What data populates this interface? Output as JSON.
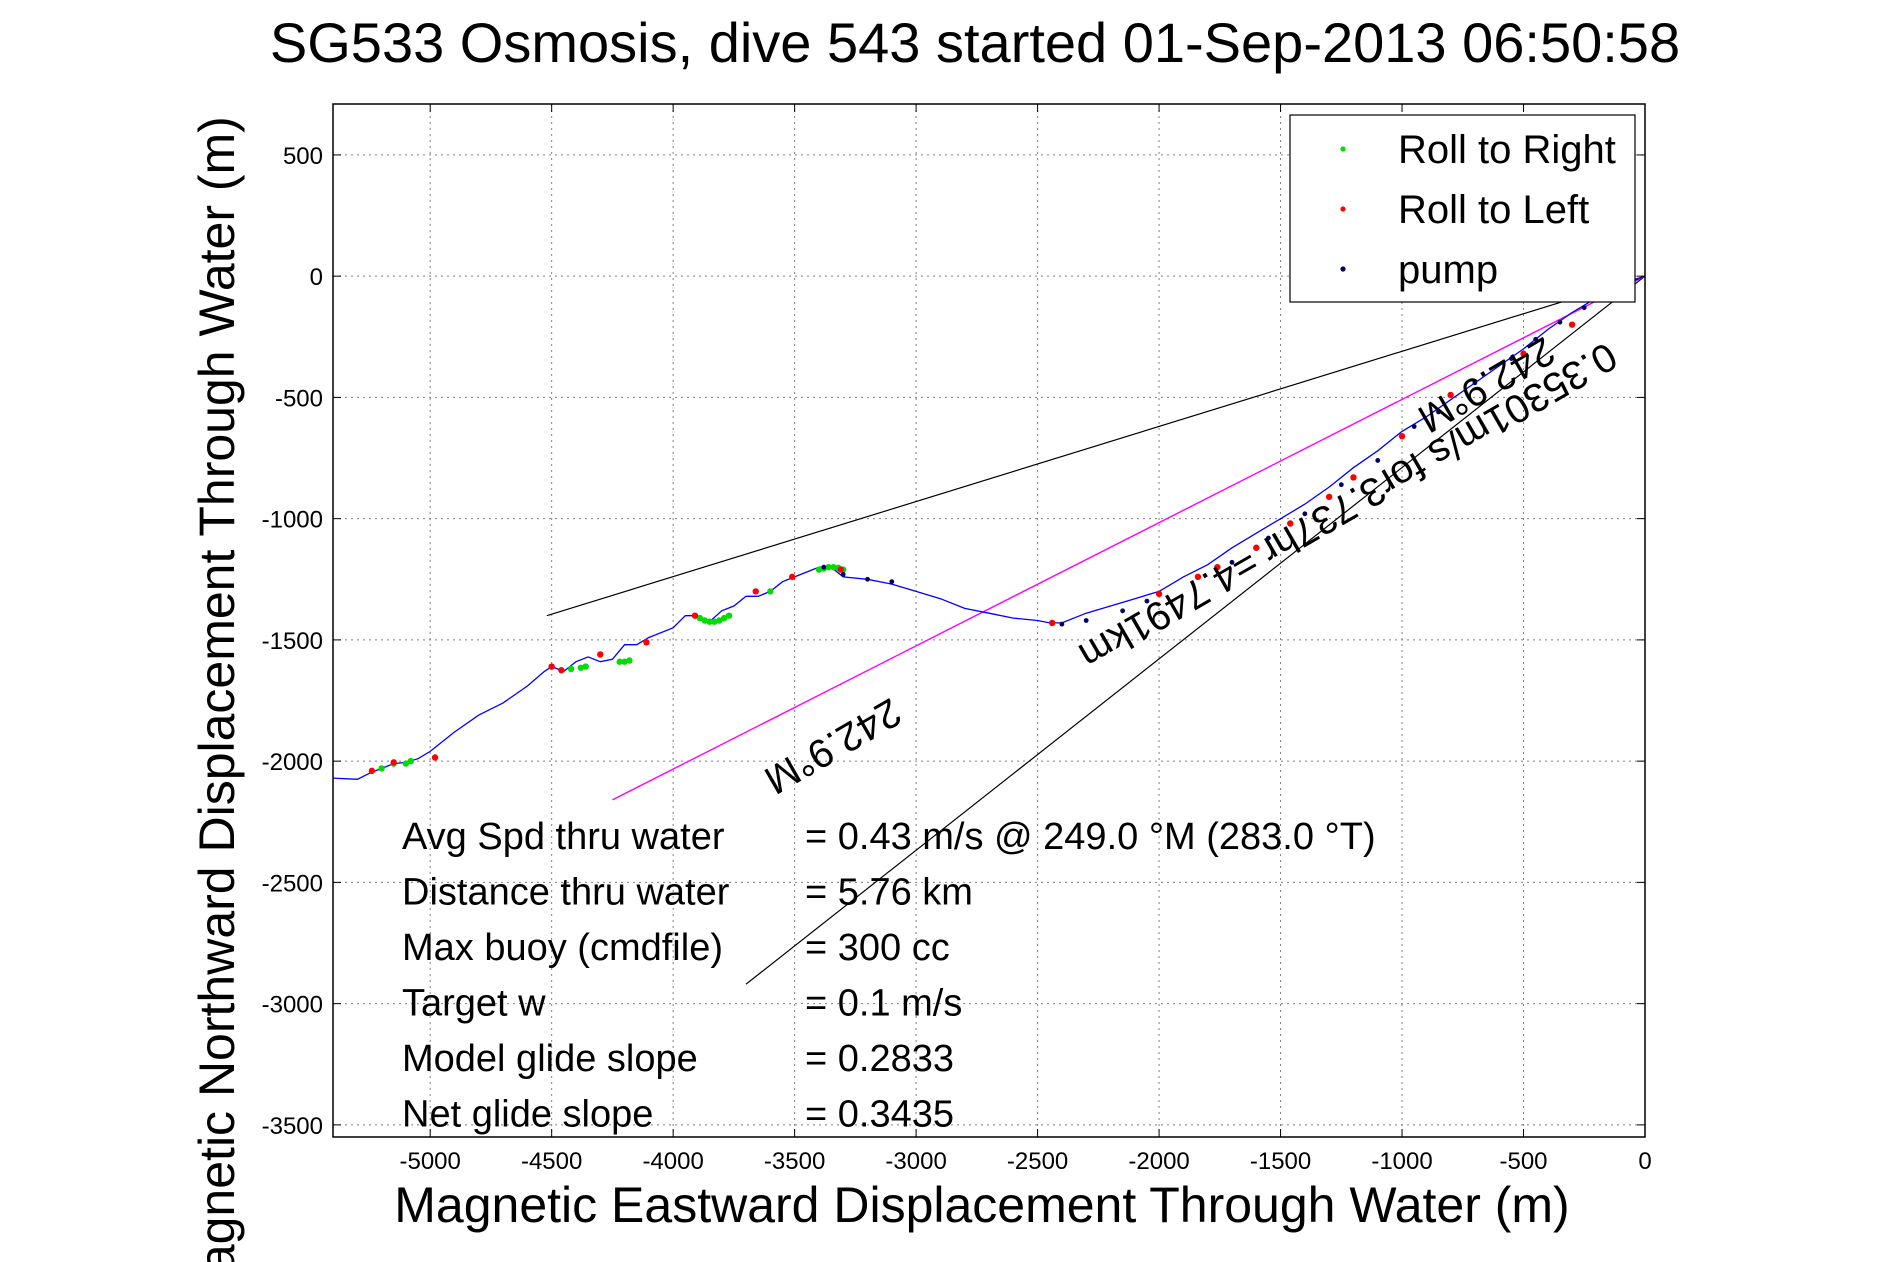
{
  "chart_data": {
    "type": "line",
    "title": "SG533 Osmosis, dive 543 started 01-Sep-2013 06:50:58",
    "xlabel": "Magnetic Eastward Displacement Through Water (m)",
    "ylabel": "Magnetic Northward Displacement Through Water (m)",
    "xlim": [
      -5400,
      0
    ],
    "ylim": [
      -3550,
      710
    ],
    "xticks": [
      -5000,
      -4500,
      -4000,
      -3500,
      -3000,
      -2500,
      -2000,
      -1500,
      -1000,
      -500,
      0
    ],
    "xtick_labels": [
      "-5000",
      "-4500",
      "-4000",
      "-3500",
      "-3000",
      "-2500",
      "-2000",
      "-1500",
      "-1000",
      "-500",
      "0"
    ],
    "yticks": [
      500,
      0,
      -500,
      -1000,
      -1500,
      -2000,
      -2500,
      -3000,
      -3500
    ],
    "ytick_labels": [
      "500",
      "0",
      "-500",
      "-1000",
      "-1500",
      "-2000",
      "-2500",
      "-3000",
      "-3500"
    ],
    "grid": true,
    "legend": {
      "position": "top-right",
      "entries": [
        {
          "label": "Roll to Right",
          "color": "#00dd00"
        },
        {
          "label": "Roll to Left",
          "color": "#ff0000"
        },
        {
          "label": "pump",
          "color": "#000066"
        }
      ]
    },
    "track_color": "#0000ff",
    "track": {
      "x": [
        -5400,
        -5300,
        -5250,
        -5200,
        -5150,
        -5100,
        -5050,
        -5000,
        -4900,
        -4800,
        -4700,
        -4600,
        -4530,
        -4500,
        -4450,
        -4400,
        -4350,
        -4300,
        -4250,
        -4200,
        -4150,
        -4100,
        -4000,
        -3950,
        -3900,
        -3850,
        -3800,
        -3750,
        -3700,
        -3650,
        -3600,
        -3550,
        -3500,
        -3450,
        -3400,
        -3350,
        -3300,
        -3200,
        -3100,
        -3000,
        -2900,
        -2800,
        -2700,
        -2600,
        -2500,
        -2450,
        -2400,
        -2300,
        -2200,
        -2100,
        -2000,
        -1900,
        -1800,
        -1700,
        -1600,
        -1500,
        -1400,
        -1300,
        -1200,
        -1100,
        -1000,
        -900,
        -800,
        -700,
        -600,
        -500,
        -400,
        -300,
        -200,
        -100,
        0
      ],
      "y": [
        -2070,
        -2075,
        -2050,
        -2030,
        -2010,
        -2005,
        -1990,
        -1960,
        -1880,
        -1810,
        -1760,
        -1690,
        -1630,
        -1610,
        -1630,
        -1590,
        -1570,
        -1590,
        -1580,
        -1520,
        -1520,
        -1490,
        -1450,
        -1400,
        -1400,
        -1425,
        -1380,
        -1360,
        -1320,
        -1320,
        -1300,
        -1260,
        -1240,
        -1220,
        -1200,
        -1200,
        -1240,
        -1250,
        -1270,
        -1300,
        -1330,
        -1370,
        -1390,
        -1410,
        -1420,
        -1430,
        -1430,
        -1390,
        -1360,
        -1330,
        -1300,
        -1240,
        -1190,
        -1120,
        -1060,
        -1000,
        -940,
        -870,
        -790,
        -720,
        -640,
        -580,
        -510,
        -440,
        -370,
        -300,
        -220,
        -150,
        -90,
        -40,
        0
      ]
    },
    "roll_right_points": {
      "x": [
        -5200,
        -5150,
        -5100,
        -5080,
        -4420,
        -4380,
        -4360,
        -4220,
        -4200,
        -4180,
        -3890,
        -3870,
        -3850,
        -3830,
        -3810,
        -3790,
        -3770,
        -3600,
        -3400,
        -3380,
        -3360,
        -3340,
        -3320,
        -3300
      ],
      "y": [
        -2030,
        -2010,
        -2010,
        -2000,
        -1620,
        -1615,
        -1610,
        -1590,
        -1590,
        -1585,
        -1410,
        -1420,
        -1425,
        -1425,
        -1420,
        -1410,
        -1400,
        -1300,
        -1210,
        -1205,
        -1200,
        -1200,
        -1203,
        -1210
      ]
    },
    "roll_left_points": {
      "x": [
        -5240,
        -5150,
        -4980,
        -4500,
        -4460,
        -4300,
        -4110,
        -3910,
        -3660,
        -3510,
        -3310,
        -2440,
        -2000,
        -1840,
        -1760,
        -1600,
        -1460,
        -1300,
        -1200,
        -1000,
        -800,
        -500,
        -300,
        -100
      ],
      "y": [
        -2040,
        -2005,
        -1985,
        -1610,
        -1625,
        -1560,
        -1510,
        -1400,
        -1300,
        -1240,
        -1210,
        -1430,
        -1310,
        -1240,
        -1200,
        -1120,
        -1020,
        -910,
        -830,
        -660,
        -490,
        -320,
        -200,
        -50
      ]
    },
    "pump_points": {
      "x": [
        -3380,
        -3300,
        -3200,
        -3100,
        -2400,
        -2300,
        -2150,
        -2050,
        -1700,
        -1550,
        -1400,
        -1250,
        -1100,
        -950,
        -850,
        -700,
        -550,
        -450,
        -350,
        -250,
        -150,
        -50
      ],
      "y": [
        -1200,
        -1230,
        -1250,
        -1260,
        -1435,
        -1420,
        -1380,
        -1340,
        -1180,
        -1080,
        -980,
        -860,
        -760,
        -620,
        -560,
        -440,
        -340,
        -260,
        -190,
        -130,
        -80,
        -30
      ]
    },
    "heading_line": {
      "color": "#ff00ff",
      "x": [
        -4250,
        0
      ],
      "y": [
        -2160,
        0
      ]
    },
    "cone_lines": [
      {
        "color": "#000000",
        "x": [
          -4520,
          0
        ],
        "y": [
          -1400,
          0
        ]
      },
      {
        "color": "#000000",
        "x": [
          -3700,
          0
        ],
        "y": [
          -2920,
          0
        ]
      }
    ],
    "annotations": [
      {
        "text": "242.9°M",
        "x": -3370,
        "y": -1890,
        "rotation": 150
      },
      {
        "text": "0.35301m/s for3.737hr =4.7491km",
        "x": -1250,
        "y": -900,
        "rotation": 150
      },
      {
        "text": "242.9°M",
        "x": -680,
        "y": -400,
        "rotation": 150
      }
    ],
    "stats": [
      {
        "label": "Avg Spd thru water",
        "value": "=  0.43 m/s @ 249.0 °M (283.0 °T)"
      },
      {
        "label": "Distance thru water",
        "value": "=  5.76 km"
      },
      {
        "label": "Max buoy (cmdfile)",
        "value": "= 300 cc"
      },
      {
        "label": "Target w",
        "value": "= 0.1 m/s"
      },
      {
        "label": "Model glide slope",
        "value": "= 0.2833"
      },
      {
        "label": "Net glide slope",
        "value": "= 0.3435"
      }
    ]
  }
}
